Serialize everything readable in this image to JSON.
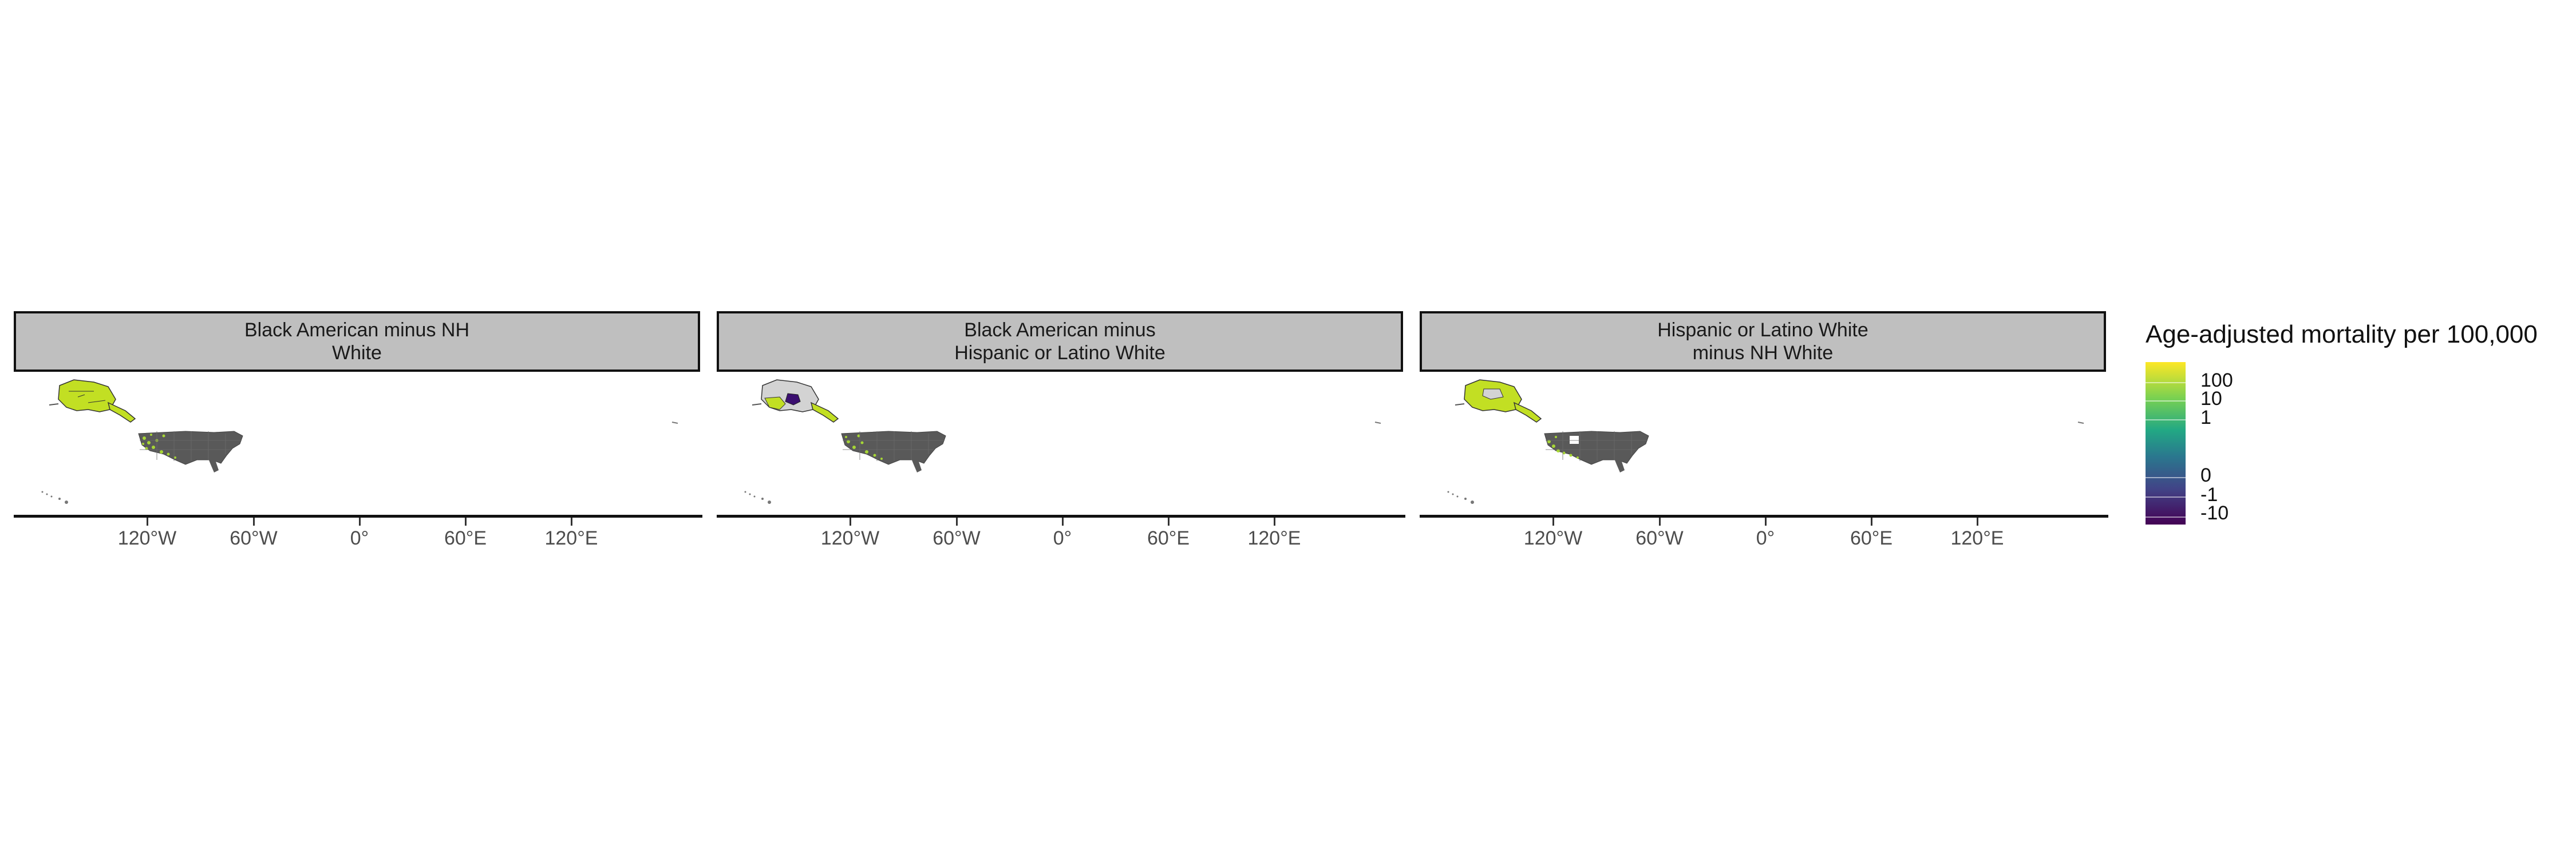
{
  "map": {
    "type": "faceted choropleth map",
    "panels": [
      {
        "title_line1": "Black American minus NH",
        "title_line2": "White"
      },
      {
        "title_line1": "Black American minus",
        "title_line2": "Hispanic or Latino White"
      },
      {
        "title_line1": "Hispanic or Latino White",
        "title_line2": "minus NH White"
      }
    ],
    "x_axis_ticks": [
      "120°W",
      "60°W",
      "0°",
      "60°E",
      "120°E"
    ],
    "colors": {
      "no_data": "#595959",
      "alaska_fill": "#c2df23",
      "alaska_fill_panel2": "#d3d3d3",
      "alaska_negative": "#3b0f70",
      "positive_county": "#a6d635",
      "strip_bg": "#bfbfbf"
    }
  },
  "legend": {
    "title": "Age-adjusted mortality per 100,000",
    "labels": [
      "100",
      "10",
      "1",
      "0",
      "-1",
      "-10"
    ],
    "palette": "viridis",
    "low_color": "#440154",
    "high_color": "#fde725"
  }
}
